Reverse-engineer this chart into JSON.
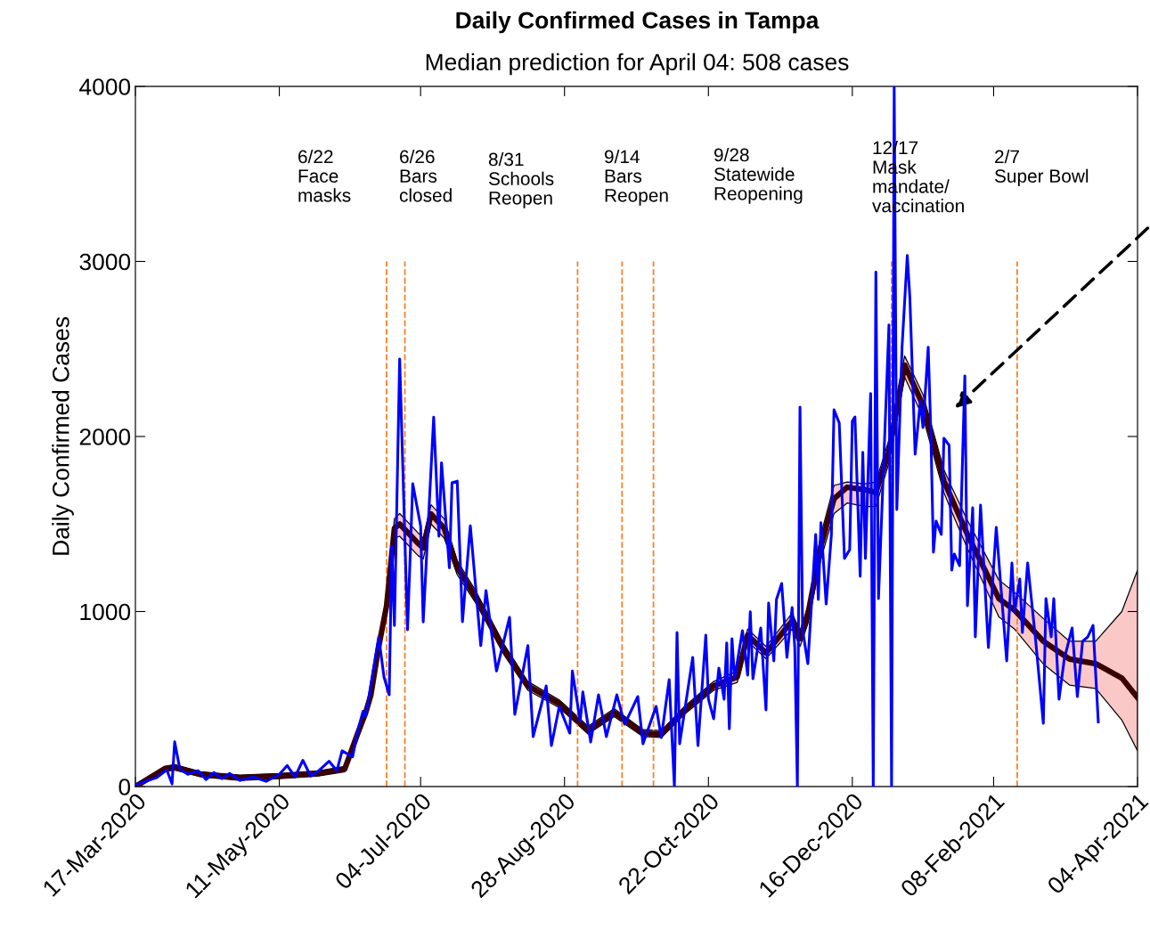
{
  "chart_data": {
    "type": "line",
    "title": "Daily Confirmed Cases in Tampa",
    "subtitle": "Median prediction for April 04: 508 cases",
    "ylabel": "Daily Confirmed Cases",
    "xlim": [
      "2020-03-17",
      "2021-04-04"
    ],
    "xticks": [
      {
        "value": "2020-03-17",
        "label": "17-Mar-2020"
      },
      {
        "value": "2020-05-11",
        "label": "11-May-2020"
      },
      {
        "value": "2020-07-04",
        "label": "04-Jul-2020"
      },
      {
        "value": "2020-08-28",
        "label": "28-Aug-2020"
      },
      {
        "value": "2020-10-22",
        "label": "22-Oct-2020"
      },
      {
        "value": "2020-12-16",
        "label": "16-Dec-2020"
      },
      {
        "value": "2021-02-08",
        "label": "08-Feb-2021"
      },
      {
        "value": "2021-04-04",
        "label": "04-Apr-2021"
      }
    ],
    "ylim": [
      0,
      4000
    ],
    "yticks": [
      0,
      1000,
      2000,
      3000,
      4000
    ],
    "grid": false,
    "legend": false,
    "series": [
      {
        "color": "#3a0000",
        "x": [
          "2020-03-17",
          "2020-03-28",
          "2020-04-01",
          "2020-04-11",
          "2020-04-26",
          "2020-05-11",
          "2020-05-26",
          "2020-06-05",
          "2020-06-10",
          "2020-06-13",
          "2020-06-15",
          "2020-06-18",
          "2020-06-21",
          "2020-06-24",
          "2020-06-26",
          "2020-07-03",
          "2020-07-05",
          "2020-07-08",
          "2020-07-13",
          "2020-07-18",
          "2020-07-25",
          "2020-08-05",
          "2020-08-14",
          "2020-08-26",
          "2020-09-06",
          "2020-09-16",
          "2020-09-27",
          "2020-10-04",
          "2020-10-13",
          "2020-10-24",
          "2020-11-02",
          "2020-11-06",
          "2020-11-13",
          "2020-11-23",
          "2020-11-26",
          "2020-11-29",
          "2020-12-04",
          "2020-12-09",
          "2020-12-14",
          "2020-12-21",
          "2020-12-25",
          "2020-12-30",
          "2021-01-05",
          "2021-01-12",
          "2021-01-20",
          "2021-01-23",
          "2021-01-29",
          "2021-02-10",
          "2021-02-16",
          "2021-02-27",
          "2021-03-09",
          "2021-03-19",
          "2021-03-29",
          "2021-04-04"
        ],
        "values": [
          0,
          100,
          110,
          70,
          50,
          60,
          75,
          100,
          305,
          422,
          524,
          800,
          1033,
          1476,
          1500,
          1390,
          1364,
          1557,
          1476,
          1252,
          1084,
          779,
          575,
          473,
          321,
          422,
          305,
          300,
          438,
          575,
          626,
          865,
          763,
          947,
          845,
          982,
          1374,
          1644,
          1710,
          1695,
          1680,
          1914,
          2408,
          2178,
          1746,
          1644,
          1440,
          1074,
          1008,
          830,
          728,
          702,
          620,
          508
        ],
        "lower": [
          0,
          85,
          95,
          55,
          35,
          45,
          60,
          85,
          285,
          400,
          500,
          770,
          1000,
          1420,
          1430,
          1320,
          1300,
          1500,
          1420,
          1210,
          1050,
          750,
          550,
          450,
          300,
          400,
          285,
          280,
          415,
          550,
          595,
          830,
          730,
          900,
          800,
          930,
          1300,
          1560,
          1620,
          1600,
          1600,
          1850,
          2340,
          2110,
          1680,
          1570,
          1360,
          970,
          900,
          700,
          580,
          560,
          380,
          204
        ],
        "upper": [
          10,
          115,
          125,
          85,
          65,
          75,
          90,
          115,
          325,
          445,
          550,
          830,
          1065,
          1530,
          1560,
          1450,
          1420,
          1610,
          1530,
          1290,
          1120,
          810,
          600,
          495,
          345,
          445,
          325,
          320,
          460,
          600,
          660,
          900,
          800,
          990,
          890,
          1030,
          1440,
          1720,
          1740,
          1730,
          1740,
          1980,
          2460,
          2240,
          1810,
          1710,
          1520,
          1180,
          1110,
          960,
          830,
          830,
          1000,
          1237
        ]
      },
      {
        "color": "#0000ff",
        "x": [
          "2020-03-17",
          "2020-03-25",
          "2020-03-29",
          "2020-03-31",
          "2020-04-01",
          "2020-04-03",
          "2020-04-06",
          "2020-04-10",
          "2020-04-13",
          "2020-04-16",
          "2020-04-19",
          "2020-04-22",
          "2020-04-26",
          "2020-05-01",
          "2020-05-06",
          "2020-05-11",
          "2020-05-14",
          "2020-05-17",
          "2020-05-20",
          "2020-05-23",
          "2020-05-26",
          "2020-05-30",
          "2020-06-02",
          "2020-06-04",
          "2020-06-08",
          "2020-06-10",
          "2020-06-12",
          "2020-06-13",
          "2020-06-18",
          "2020-06-20",
          "2020-06-22",
          "2020-06-23",
          "2020-06-24",
          "2020-06-26",
          "2020-06-29",
          "2020-07-01",
          "2020-07-04",
          "2020-07-05",
          "2020-07-09",
          "2020-07-11",
          "2020-07-12",
          "2020-07-15",
          "2020-07-16",
          "2020-07-18",
          "2020-07-20",
          "2020-07-23",
          "2020-07-27",
          "2020-07-29",
          "2020-08-02",
          "2020-08-07",
          "2020-08-09",
          "2020-08-14",
          "2020-08-16",
          "2020-08-21",
          "2020-08-23",
          "2020-08-26",
          "2020-08-30",
          "2020-08-31",
          "2020-09-03",
          "2020-09-04",
          "2020-09-07",
          "2020-09-10",
          "2020-09-13",
          "2020-09-17",
          "2020-09-20",
          "2020-09-25",
          "2020-09-27",
          "2020-10-02",
          "2020-10-04",
          "2020-10-07",
          "2020-10-09",
          "2020-10-10",
          "2020-10-11",
          "2020-10-16",
          "2020-10-18",
          "2020-10-21",
          "2020-10-22",
          "2020-10-24",
          "2020-10-26",
          "2020-10-28",
          "2020-10-29",
          "2020-10-30",
          "2020-10-31",
          "2020-11-01",
          "2020-11-04",
          "2020-11-06",
          "2020-11-07",
          "2020-11-08",
          "2020-11-11",
          "2020-11-13",
          "2020-11-14",
          "2020-11-16",
          "2020-11-17",
          "2020-11-19",
          "2020-11-21",
          "2020-11-23",
          "2020-11-24",
          "2020-11-25",
          "2020-11-26",
          "2020-11-27",
          "2020-11-29",
          "2020-12-02",
          "2020-12-03",
          "2020-12-04",
          "2020-12-06",
          "2020-12-08",
          "2020-12-09",
          "2020-12-11",
          "2020-12-13",
          "2020-12-15",
          "2020-12-16",
          "2020-12-17",
          "2020-12-19",
          "2020-12-20",
          "2020-12-21",
          "2020-12-23",
          "2020-12-24",
          "2020-12-25",
          "2020-12-26",
          "2020-12-30",
          "2020-12-31",
          "2021-01-01",
          "2021-01-02",
          "2021-01-04",
          "2021-01-06",
          "2021-01-07",
          "2021-01-09",
          "2021-01-11",
          "2021-01-12",
          "2021-01-14",
          "2021-01-15",
          "2021-01-16",
          "2021-01-17",
          "2021-01-19",
          "2021-01-20",
          "2021-01-22",
          "2021-01-23",
          "2021-01-24",
          "2021-01-26",
          "2021-01-28",
          "2021-01-29",
          "2021-01-31",
          "2021-02-01",
          "2021-02-03",
          "2021-02-06",
          "2021-02-09",
          "2021-02-13",
          "2021-02-15",
          "2021-02-16",
          "2021-02-18",
          "2021-02-19",
          "2021-02-21",
          "2021-02-24",
          "2021-02-27",
          "2021-02-28",
          "2021-03-02",
          "2021-03-03",
          "2021-03-05",
          "2021-03-07",
          "2021-03-10",
          "2021-03-12",
          "2021-03-14",
          "2021-03-16",
          "2021-03-18",
          "2021-03-20"
        ],
        "values": [
          10,
          50,
          95,
          15,
          255,
          100,
          70,
          90,
          40,
          80,
          45,
          75,
          35,
          55,
          30,
          70,
          120,
          55,
          150,
          60,
          90,
          145,
          90,
          204,
          170,
          320,
          430,
          400,
          855,
          626,
          524,
          1375,
          920,
          2443,
          896,
          1730,
          1490,
          940,
          2110,
          1430,
          1850,
          1250,
          1735,
          1745,
          942,
          1490,
          805,
          1120,
          660,
          967,
          412,
          805,
          285,
          575,
          234,
          458,
          305,
          660,
          372,
          540,
          254,
          524,
          285,
          524,
          356,
          514,
          244,
          458,
          280,
          611,
          0,
          880,
          244,
          738,
          234,
          865,
          499,
          387,
          677,
          499,
          820,
          330,
          845,
          616,
          890,
          636,
          998,
          616,
          906,
          438,
          1048,
          718,
          1069,
          1160,
          738,
          1023,
          794,
          0,
          2168,
          896,
          702,
          1440,
          1069,
          1507,
          1043,
          1440,
          2153,
          2077,
          1303,
          1354,
          2087,
          2112,
          1201,
          1909,
          1303,
          2245,
          0,
          2940,
          1074,
          2637,
          0,
          4000,
          1583,
          2510,
          3034,
          2790,
          1899,
          2204,
          2051,
          2510,
          2026,
          1339,
          1517,
          1440,
          1990,
          1950,
          1237,
          1328,
          1262,
          2346,
          1033,
          1593,
          855,
          1608,
          794,
          1481,
          718,
          1277,
          998,
          1186,
          880,
          1277,
          845,
          361,
          1074,
          855,
          1074,
          499,
          728,
          906,
          514,
          830,
          855,
          921,
          370
        ]
      }
    ],
    "ref_lines": [
      {
        "axis": "x",
        "value": "2020-06-21",
        "color": "#f5822a",
        "line_style": "dashed"
      },
      {
        "axis": "x",
        "value": "2020-06-28",
        "color": "#f5822a",
        "line_style": "dashed"
      },
      {
        "axis": "x",
        "value": "2020-09-02",
        "color": "#f5822a",
        "line_style": "dashed"
      },
      {
        "axis": "x",
        "value": "2020-09-19",
        "color": "#f5822a",
        "line_style": "dashed"
      },
      {
        "axis": "x",
        "value": "2020-10-01",
        "color": "#f5822a",
        "line_style": "dashed"
      },
      {
        "axis": "x",
        "value": "2020-12-31",
        "color": "#f5822a",
        "line_style": "dashed"
      },
      {
        "axis": "x",
        "value": "2021-02-17",
        "color": "#f5822a",
        "line_style": "dashed"
      }
    ],
    "annotations": [
      "6/22\nFace\nmasks",
      "6/26\nBars\nclosed",
      "8/31\nSchools\nReopen",
      "9/14\nBars\nReopen",
      "9/28\nStatewide\nReopening",
      "12/17\nMask\nmandate/\nvaccination",
      "2/7\nSuper Bowl"
    ]
  }
}
